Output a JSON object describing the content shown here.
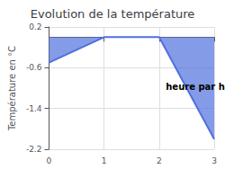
{
  "chart_data": {
    "type": "area",
    "title": "Evolution de la température",
    "ylabel": "Température en °C",
    "annotation": "heure par heure",
    "x": [
      0,
      1,
      2,
      3
    ],
    "values": [
      -0.5,
      0.0,
      0.0,
      -2.0
    ],
    "xlim": [
      0,
      3
    ],
    "xticks": [
      0,
      1,
      2,
      3
    ],
    "ylim": [
      -2.2,
      0.2
    ],
    "yticks": [
      0.2,
      -0.6,
      -1.4,
      -2.2
    ],
    "grid": true
  }
}
